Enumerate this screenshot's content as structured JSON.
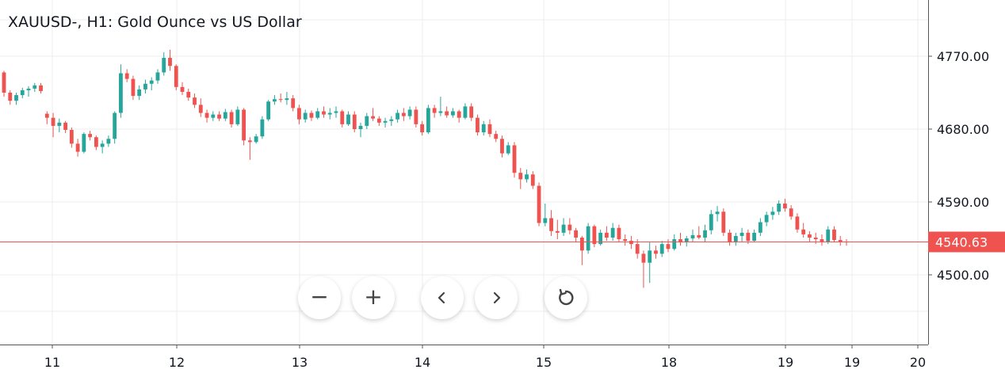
{
  "chart_data": {
    "type": "candlestick",
    "title": "XAUUSD-, H1: Gold Ounce vs US Dollar",
    "symbol": "XAUUSD-",
    "timeframe": "H1",
    "last_price": 4540.63,
    "last_price_label": "4540.63",
    "y_ticks": [
      "4770.00",
      "4680.00",
      "4590.00",
      "4500.00"
    ],
    "y_tick_values": [
      4770,
      4680,
      4590,
      4500
    ],
    "x_tick_labels": [
      "11",
      "12",
      "13",
      "14",
      "15",
      "18",
      "19",
      "19",
      "20"
    ],
    "ylim": [
      4420,
      4840
    ],
    "colors": {
      "up": "#26a69a",
      "down": "#ef5350",
      "price_line": "#ef5350",
      "grid": "#eeeeee",
      "axis": "#555555",
      "text": "#131722"
    },
    "candles": [
      [
        4750,
        4752,
        4720,
        4725
      ],
      [
        4725,
        4728,
        4710,
        4715
      ],
      [
        4715,
        4725,
        4710,
        4722
      ],
      [
        4722,
        4731,
        4718,
        4728
      ],
      [
        4728,
        4733,
        4720,
        4730
      ],
      [
        4730,
        4737,
        4726,
        4734
      ],
      [
        4734,
        4737,
        4724,
        4727
      ],
      [
        4699,
        4702,
        4686,
        4694
      ],
      [
        4694,
        4700,
        4670,
        4684
      ],
      [
        4684,
        4693,
        4676,
        4688
      ],
      [
        4688,
        4690,
        4675,
        4679
      ],
      [
        4679,
        4682,
        4657,
        4662
      ],
      [
        4662,
        4668,
        4646,
        4652
      ],
      [
        4652,
        4676,
        4650,
        4674
      ],
      [
        4674,
        4678,
        4666,
        4670
      ],
      [
        4670,
        4672,
        4654,
        4658
      ],
      [
        4658,
        4666,
        4650,
        4662
      ],
      [
        4662,
        4672,
        4658,
        4668
      ],
      [
        4668,
        4702,
        4662,
        4700
      ],
      [
        4700,
        4760,
        4694,
        4749
      ],
      [
        4749,
        4754,
        4738,
        4742
      ],
      [
        4742,
        4746,
        4716,
        4721
      ],
      [
        4721,
        4734,
        4716,
        4729
      ],
      [
        4729,
        4741,
        4724,
        4736
      ],
      [
        4736,
        4744,
        4728,
        4740
      ],
      [
        4740,
        4754,
        4736,
        4750
      ],
      [
        4750,
        4775,
        4746,
        4768
      ],
      [
        4768,
        4778,
        4752,
        4758
      ],
      [
        4758,
        4760,
        4728,
        4732
      ],
      [
        4732,
        4738,
        4722,
        4726
      ],
      [
        4726,
        4730,
        4715,
        4719
      ],
      [
        4719,
        4724,
        4706,
        4710
      ],
      [
        4710,
        4718,
        4695,
        4700
      ],
      [
        4700,
        4704,
        4688,
        4694
      ],
      [
        4694,
        4702,
        4690,
        4698
      ],
      [
        4698,
        4702,
        4690,
        4693
      ],
      [
        4693,
        4705,
        4690,
        4701
      ],
      [
        4701,
        4704,
        4682,
        4686
      ],
      [
        4686,
        4708,
        4684,
        4704
      ],
      [
        4704,
        4706,
        4660,
        4666
      ],
      [
        4666,
        4670,
        4642,
        4664
      ],
      [
        4664,
        4674,
        4662,
        4671
      ],
      [
        4671,
        4696,
        4668,
        4692
      ],
      [
        4692,
        4716,
        4690,
        4714
      ],
      [
        4714,
        4722,
        4710,
        4717
      ],
      [
        4717,
        4724,
        4713,
        4716
      ],
      [
        4716,
        4726,
        4710,
        4718
      ],
      [
        4718,
        4722,
        4702,
        4706
      ],
      [
        4706,
        4710,
        4686,
        4692
      ],
      [
        4692,
        4704,
        4688,
        4700
      ],
      [
        4700,
        4703,
        4690,
        4694
      ],
      [
        4694,
        4706,
        4692,
        4702
      ],
      [
        4702,
        4708,
        4694,
        4698
      ],
      [
        4698,
        4706,
        4692,
        4700
      ],
      [
        4700,
        4708,
        4694,
        4702
      ],
      [
        4702,
        4704,
        4682,
        4686
      ],
      [
        4686,
        4702,
        4684,
        4698
      ],
      [
        4698,
        4702,
        4676,
        4680
      ],
      [
        4680,
        4688,
        4670,
        4684
      ],
      [
        4684,
        4700,
        4680,
        4696
      ],
      [
        4696,
        4706,
        4690,
        4693
      ],
      [
        4693,
        4696,
        4684,
        4688
      ],
      [
        4688,
        4694,
        4682,
        4690
      ],
      [
        4690,
        4696,
        4684,
        4692
      ],
      [
        4692,
        4704,
        4688,
        4700
      ],
      [
        4700,
        4706,
        4690,
        4696
      ],
      [
        4696,
        4708,
        4692,
        4704
      ],
      [
        4704,
        4708,
        4682,
        4686
      ],
      [
        4686,
        4690,
        4672,
        4676
      ],
      [
        4676,
        4710,
        4674,
        4706
      ],
      [
        4706,
        4710,
        4694,
        4700
      ],
      [
        4700,
        4720,
        4696,
        4702
      ],
      [
        4702,
        4708,
        4694,
        4697
      ],
      [
        4697,
        4706,
        4694,
        4702
      ],
      [
        4702,
        4704,
        4688,
        4694
      ],
      [
        4694,
        4712,
        4692,
        4708
      ],
      [
        4708,
        4712,
        4690,
        4694
      ],
      [
        4694,
        4698,
        4672,
        4676
      ],
      [
        4676,
        4690,
        4672,
        4686
      ],
      [
        4686,
        4692,
        4670,
        4674
      ],
      [
        4674,
        4678,
        4664,
        4668
      ],
      [
        4668,
        4672,
        4645,
        4650
      ],
      [
        4650,
        4664,
        4648,
        4660
      ],
      [
        4660,
        4664,
        4620,
        4626
      ],
      [
        4626,
        4632,
        4606,
        4618
      ],
      [
        4618,
        4630,
        4614,
        4624
      ],
      [
        4624,
        4628,
        4606,
        4610
      ],
      [
        4610,
        4614,
        4560,
        4564
      ],
      [
        4564,
        4588,
        4560,
        4570
      ],
      [
        4570,
        4580,
        4548,
        4554
      ],
      [
        4554,
        4568,
        4544,
        4552
      ],
      [
        4552,
        4570,
        4548,
        4562
      ],
      [
        4562,
        4570,
        4550,
        4555
      ],
      [
        4555,
        4558,
        4540,
        4546
      ],
      [
        4546,
        4548,
        4512,
        4530
      ],
      [
        4530,
        4564,
        4526,
        4560
      ],
      [
        4560,
        4562,
        4534,
        4538
      ],
      [
        4538,
        4556,
        4536,
        4552
      ],
      [
        4552,
        4560,
        4542,
        4546
      ],
      [
        4546,
        4564,
        4542,
        4558
      ],
      [
        4558,
        4562,
        4540,
        4544
      ],
      [
        4544,
        4550,
        4536,
        4542
      ],
      [
        4542,
        4548,
        4532,
        4538
      ],
      [
        4538,
        4544,
        4520,
        4526
      ],
      [
        4526,
        4530,
        4484,
        4515
      ],
      [
        4515,
        4540,
        4490,
        4530
      ],
      [
        4530,
        4536,
        4520,
        4526
      ],
      [
        4526,
        4542,
        4522,
        4538
      ],
      [
        4538,
        4544,
        4528,
        4532
      ],
      [
        4532,
        4550,
        4530,
        4544
      ],
      [
        4544,
        4552,
        4536,
        4540
      ],
      [
        4540,
        4548,
        4535,
        4545
      ],
      [
        4545,
        4556,
        4540,
        4549
      ],
      [
        4549,
        4560,
        4544,
        4546
      ],
      [
        4546,
        4562,
        4540,
        4555
      ],
      [
        4555,
        4580,
        4550,
        4575
      ],
      [
        4575,
        4585,
        4566,
        4578
      ],
      [
        4578,
        4582,
        4548,
        4552
      ],
      [
        4552,
        4556,
        4536,
        4540
      ],
      [
        4540,
        4552,
        4536,
        4548
      ],
      [
        4548,
        4558,
        4540,
        4552
      ],
      [
        4552,
        4556,
        4538,
        4542
      ],
      [
        4542,
        4556,
        4540,
        4552
      ],
      [
        4552,
        4570,
        4548,
        4565
      ],
      [
        4565,
        4578,
        4560,
        4574
      ],
      [
        4574,
        4584,
        4568,
        4578
      ],
      [
        4578,
        4592,
        4574,
        4588
      ],
      [
        4588,
        4594,
        4578,
        4582
      ],
      [
        4582,
        4586,
        4568,
        4572
      ],
      [
        4572,
        4576,
        4552,
        4556
      ],
      [
        4556,
        4564,
        4546,
        4550
      ],
      [
        4550,
        4554,
        4540,
        4546
      ],
      [
        4546,
        4552,
        4538,
        4544
      ],
      [
        4544,
        4550,
        4536,
        4541
      ],
      [
        4541,
        4560,
        4538,
        4556
      ],
      [
        4556,
        4560,
        4540,
        4543
      ],
      [
        4543,
        4548,
        4536,
        4541
      ],
      [
        4541,
        4544,
        4536,
        4540.63
      ]
    ]
  },
  "controls": {
    "zoom_out": "−",
    "zoom_in": "+",
    "scroll_left_icon": "chevron-left-icon",
    "scroll_right_icon": "chevron-right-icon",
    "reset_icon": "reset-icon"
  }
}
